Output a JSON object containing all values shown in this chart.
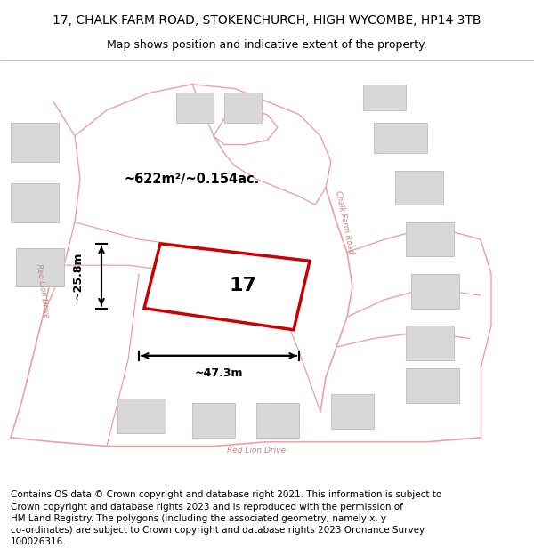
{
  "title_line1": "17, CHALK FARM ROAD, STOKENCHURCH, HIGH WYCOMBE, HP14 3TB",
  "title_line2": "Map shows position and indicative extent of the property.",
  "footer_text": "Contains OS data © Crown copyright and database right 2021. This information is subject to Crown copyright and database rights 2023 and is reproduced with the permission of HM Land Registry. The polygons (including the associated geometry, namely x, y co-ordinates) are subject to Crown copyright and database rights 2023 Ordnance Survey 100026316.",
  "area_label": "~622m²/~0.154ac.",
  "width_label": "~47.3m",
  "height_label": "~25.8m",
  "property_number": "17",
  "map_bg": "#f7f7f7",
  "property_fill": "#ffffff",
  "property_edge": "#cc0000",
  "road_color": "#f0a0a0",
  "building_fill": "#d8d8d8",
  "building_edge": "#c8c0c0",
  "title_fontsize": 10,
  "subtitle_fontsize": 9,
  "footer_fontsize": 7.5,
  "label_color": "#c08888"
}
